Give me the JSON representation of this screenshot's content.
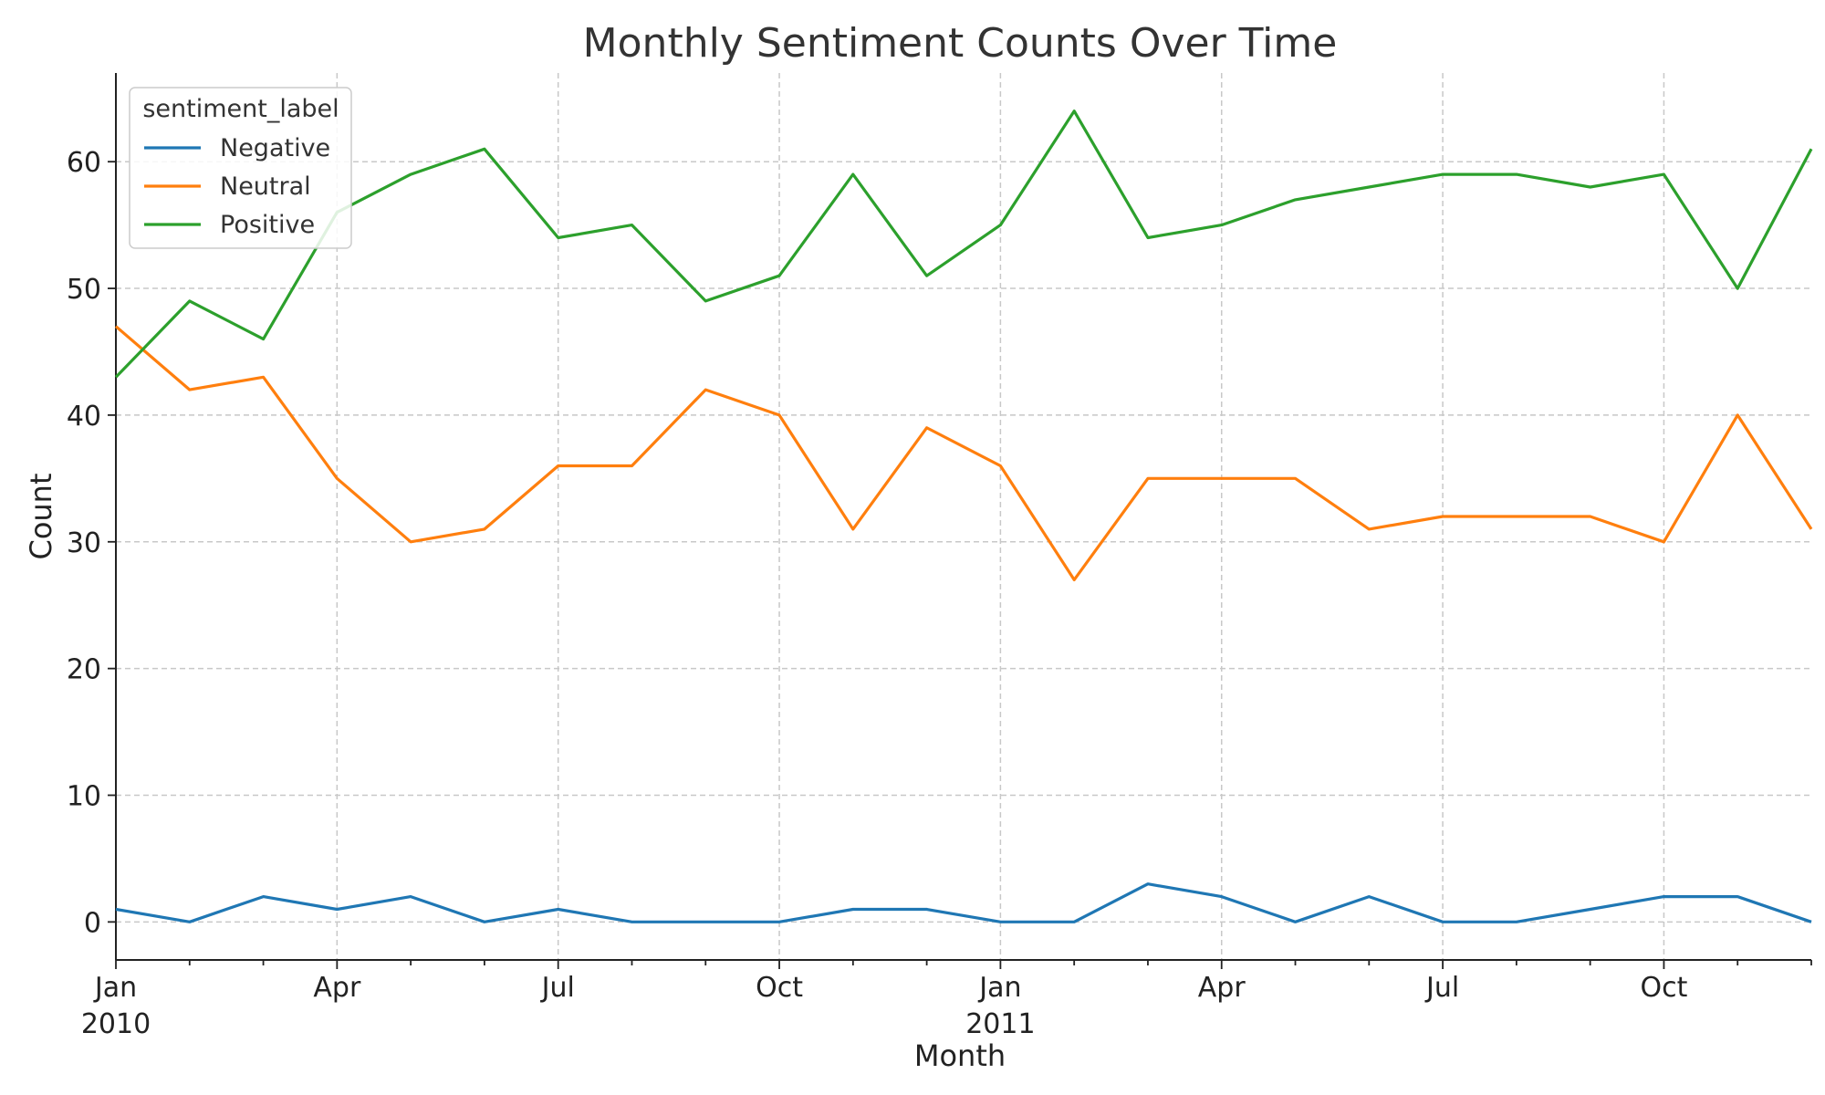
{
  "chart_data": {
    "type": "line",
    "title": "Monthly Sentiment Counts Over Time",
    "xlabel": "Month",
    "ylabel": "Count",
    "ylim": [
      -3,
      67
    ],
    "yticks": [
      0,
      10,
      20,
      30,
      40,
      50,
      60
    ],
    "x": [
      "2010-01",
      "2010-02",
      "2010-03",
      "2010-04",
      "2010-05",
      "2010-06",
      "2010-07",
      "2010-08",
      "2010-09",
      "2010-10",
      "2010-11",
      "2010-12",
      "2011-01",
      "2011-02",
      "2011-03",
      "2011-04",
      "2011-05",
      "2011-06",
      "2011-07",
      "2011-08",
      "2011-09",
      "2011-10",
      "2011-11",
      "2011-12"
    ],
    "xticks_major": [
      {
        "x": "2010-01",
        "label": "Jan",
        "sublabel": "2010"
      },
      {
        "x": "2010-04",
        "label": "Apr",
        "sublabel": ""
      },
      {
        "x": "2010-07",
        "label": "Jul",
        "sublabel": ""
      },
      {
        "x": "2010-10",
        "label": "Oct",
        "sublabel": ""
      },
      {
        "x": "2011-01",
        "label": "Jan",
        "sublabel": "2011"
      },
      {
        "x": "2011-04",
        "label": "Apr",
        "sublabel": ""
      },
      {
        "x": "2011-07",
        "label": "Jul",
        "sublabel": ""
      },
      {
        "x": "2011-10",
        "label": "Oct",
        "sublabel": ""
      }
    ],
    "grid": true,
    "legend": {
      "title": "sentiment_label",
      "placement": "top-left"
    },
    "series": [
      {
        "name": "Negative",
        "color": "#1f77b4",
        "values": [
          1,
          0,
          2,
          1,
          2,
          0,
          1,
          0,
          0,
          0,
          1,
          1,
          0,
          0,
          3,
          2,
          0,
          2,
          0,
          0,
          1,
          2,
          2,
          0
        ]
      },
      {
        "name": "Neutral",
        "color": "#ff7f0e",
        "values": [
          47,
          42,
          43,
          35,
          30,
          31,
          36,
          36,
          42,
          40,
          31,
          39,
          36,
          27,
          35,
          35,
          35,
          31,
          32,
          32,
          32,
          30,
          40,
          31
        ]
      },
      {
        "name": "Positive",
        "color": "#2ca02c",
        "values": [
          43,
          49,
          46,
          56,
          59,
          61,
          54,
          55,
          49,
          51,
          59,
          51,
          55,
          64,
          54,
          55,
          57,
          58,
          59,
          59,
          58,
          59,
          50,
          61
        ]
      }
    ]
  }
}
